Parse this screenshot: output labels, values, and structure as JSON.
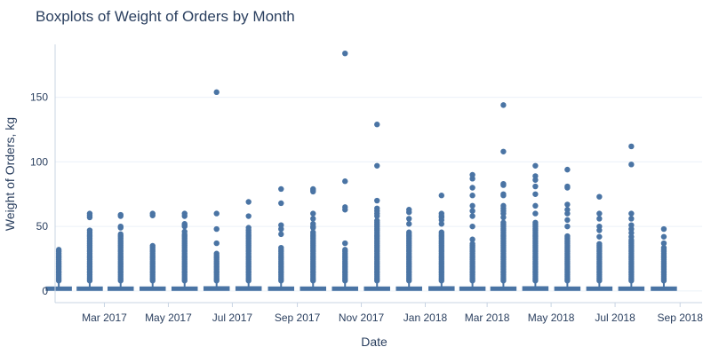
{
  "chart_data": {
    "type": "box",
    "title": "Boxplots of Weight of Orders by Month",
    "xlabel": "Date",
    "ylabel": "Weight of Orders, kg",
    "xlim": [
      "2017-01-13",
      "2018-09-22"
    ],
    "ylim": [
      -9,
      191
    ],
    "grid": true,
    "color": "#4a74a4",
    "x_tick_labels": [
      "Mar 2017",
      "May 2017",
      "Jul 2017",
      "Sep 2017",
      "Nov 2017",
      "Jan 2018",
      "Mar 2018",
      "May 2018",
      "Jul 2018",
      "Sep 2018"
    ],
    "y_tick_labels": [
      "0",
      "50",
      "100",
      "150"
    ],
    "y_ticks": [
      0,
      50,
      100,
      150
    ],
    "boxes": [
      {
        "month": "2017-01",
        "q1": 0.6,
        "median": 1.3,
        "q3": 3.0,
        "whisker_high": 7.0,
        "outlier_max": 32
      },
      {
        "month": "2017-02",
        "q1": 0.6,
        "median": 1.3,
        "q3": 3.0,
        "whisker_high": 7.0,
        "outlier_max": 60
      },
      {
        "month": "2017-03",
        "q1": 0.6,
        "median": 1.3,
        "q3": 3.0,
        "whisker_high": 7.0,
        "outlier_max": 59
      },
      {
        "month": "2017-04",
        "q1": 0.6,
        "median": 1.3,
        "q3": 3.0,
        "whisker_high": 7.0,
        "outlier_max": 60
      },
      {
        "month": "2017-05",
        "q1": 0.6,
        "median": 1.3,
        "q3": 3.0,
        "whisker_high": 7.0,
        "outlier_max": 60
      },
      {
        "month": "2017-06",
        "q1": 0.6,
        "median": 1.3,
        "q3": 3.2,
        "whisker_high": 7.5,
        "outlier_max": 154
      },
      {
        "month": "2017-07",
        "q1": 0.6,
        "median": 1.3,
        "q3": 3.2,
        "whisker_high": 7.5,
        "outlier_max": 69
      },
      {
        "month": "2017-08",
        "q1": 0.6,
        "median": 1.3,
        "q3": 3.0,
        "whisker_high": 7.0,
        "outlier_max": 79
      },
      {
        "month": "2017-09",
        "q1": 0.6,
        "median": 1.3,
        "q3": 3.0,
        "whisker_high": 7.0,
        "outlier_max": 79
      },
      {
        "month": "2017-10",
        "q1": 0.6,
        "median": 1.3,
        "q3": 3.0,
        "whisker_high": 7.0,
        "outlier_max": 184
      },
      {
        "month": "2017-11",
        "q1": 0.6,
        "median": 1.3,
        "q3": 3.0,
        "whisker_high": 7.0,
        "outlier_max": 129
      },
      {
        "month": "2017-12",
        "q1": 0.6,
        "median": 1.3,
        "q3": 3.0,
        "whisker_high": 7.0,
        "outlier_max": 63
      },
      {
        "month": "2018-01",
        "q1": 0.6,
        "median": 1.3,
        "q3": 3.2,
        "whisker_high": 7.5,
        "outlier_max": 74
      },
      {
        "month": "2018-02",
        "q1": 0.6,
        "median": 1.3,
        "q3": 3.0,
        "whisker_high": 7.0,
        "outlier_max": 90
      },
      {
        "month": "2018-03",
        "q1": 0.6,
        "median": 1.3,
        "q3": 3.0,
        "whisker_high": 7.0,
        "outlier_max": 144
      },
      {
        "month": "2018-04",
        "q1": 0.6,
        "median": 1.3,
        "q3": 3.2,
        "whisker_high": 7.5,
        "outlier_max": 97
      },
      {
        "month": "2018-05",
        "q1": 0.6,
        "median": 1.3,
        "q3": 3.0,
        "whisker_high": 7.0,
        "outlier_max": 94
      },
      {
        "month": "2018-06",
        "q1": 0.6,
        "median": 1.3,
        "q3": 3.0,
        "whisker_high": 7.0,
        "outlier_max": 73
      },
      {
        "month": "2018-07",
        "q1": 0.6,
        "median": 1.3,
        "q3": 3.0,
        "whisker_high": 7.0,
        "outlier_max": 112
      },
      {
        "month": "2018-08",
        "q1": 0.6,
        "median": 1.3,
        "q3": 3.0,
        "whisker_high": 7.0,
        "outlier_max": 48
      }
    ],
    "outliers": [
      {
        "month": "2017-01",
        "dense_max": 32,
        "extra": []
      },
      {
        "month": "2017-02",
        "dense_max": 48,
        "extra": [
          57,
          58.5,
          60
        ]
      },
      {
        "month": "2017-03",
        "dense_max": 45,
        "extra": [
          49,
          50,
          58,
          59
        ]
      },
      {
        "month": "2017-04",
        "dense_max": 35,
        "extra": [
          58.5,
          60
        ]
      },
      {
        "month": "2017-05",
        "dense_max": 44,
        "extra": [
          46,
          50,
          51,
          52,
          58,
          60
        ]
      },
      {
        "month": "2017-06",
        "dense_max": 30,
        "extra": [
          37,
          48,
          60,
          154
        ]
      },
      {
        "month": "2017-07",
        "dense_max": 47,
        "extra": [
          49,
          58,
          69
        ]
      },
      {
        "month": "2017-08",
        "dense_max": 34,
        "extra": [
          44,
          48,
          51,
          68,
          79
        ]
      },
      {
        "month": "2017-09",
        "dense_max": 46,
        "extra": [
          49,
          50,
          52,
          56,
          60,
          77,
          78,
          79
        ]
      },
      {
        "month": "2017-10",
        "dense_max": 33,
        "extra": [
          37,
          63,
          65,
          85,
          184
        ]
      },
      {
        "month": "2017-11",
        "dense_max": 55,
        "extra": [
          58,
          60,
          62,
          64,
          70,
          97,
          129
        ]
      },
      {
        "month": "2017-12",
        "dense_max": 46,
        "extra": [
          52,
          56,
          61,
          63
        ]
      },
      {
        "month": "2018-01",
        "dense_max": 46,
        "extra": [
          52,
          55,
          57,
          58,
          60,
          74
        ]
      },
      {
        "month": "2018-02",
        "dense_max": 37,
        "extra": [
          40,
          50,
          58,
          62,
          66,
          74,
          80,
          87,
          90
        ]
      },
      {
        "month": "2018-03",
        "dense_max": 54,
        "extra": [
          57,
          60,
          62,
          64,
          66,
          74,
          75,
          82,
          83,
          108,
          144
        ]
      },
      {
        "month": "2018-04",
        "dense_max": 54,
        "extra": [
          60,
          66,
          75,
          81,
          86,
          89,
          97
        ]
      },
      {
        "month": "2018-05",
        "dense_max": 43,
        "extra": [
          50,
          55,
          60,
          63,
          67,
          80,
          81,
          94
        ]
      },
      {
        "month": "2018-06",
        "dense_max": 37,
        "extra": [
          42,
          47,
          50,
          56,
          60,
          73
        ]
      },
      {
        "month": "2018-07",
        "dense_max": 40,
        "extra": [
          42,
          45,
          48,
          51,
          56,
          60,
          98,
          112
        ]
      },
      {
        "month": "2018-08",
        "dense_max": 34,
        "extra": [
          37,
          42,
          48
        ]
      }
    ]
  }
}
